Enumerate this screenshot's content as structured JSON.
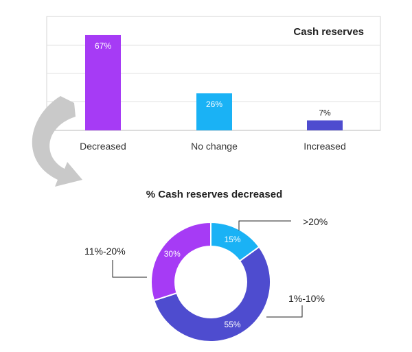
{
  "chart_data": [
    {
      "type": "bar",
      "title": "Cash reserves",
      "categories": [
        "Decreased",
        "No change",
        "Increased"
      ],
      "values": [
        67,
        26,
        7
      ],
      "value_labels": [
        "67%",
        "26%",
        "7%"
      ],
      "colors": [
        "#a63bf5",
        "#1ab2f5",
        "#4e4ccf"
      ],
      "ylim": [
        0,
        80
      ],
      "grid": true
    },
    {
      "type": "pie",
      "title": "% Cash reserves decreased",
      "donut": true,
      "slices": [
        {
          "label": ">20%",
          "value": 15,
          "value_label": "15%",
          "color": "#1ab2f5"
        },
        {
          "label": "1%-10%",
          "value": 55,
          "value_label": "55%",
          "color": "#4e4ccf"
        },
        {
          "label": "11%-20%",
          "value": 30,
          "value_label": "30%",
          "color": "#a63bf5"
        }
      ]
    }
  ]
}
